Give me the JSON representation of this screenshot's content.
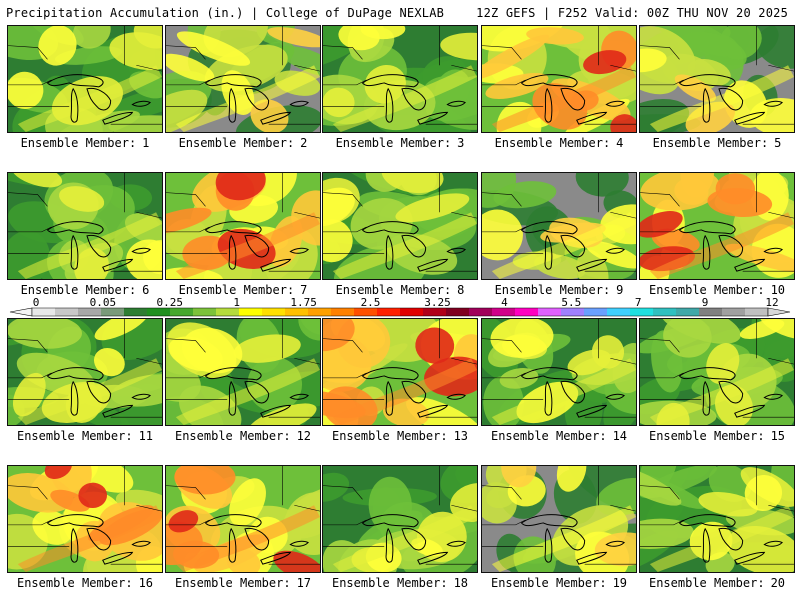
{
  "header": {
    "title": "Precipitation Accumulation (in.) | College of DuPage NEXLAB",
    "run_info": "12Z GEFS | F252 Valid: 00Z THU NOV 20 2025"
  },
  "panel_label_prefix": "Ensemble Member:",
  "members": [
    {
      "label": "1",
      "tone": "green"
    },
    {
      "label": "2",
      "tone": "mixed"
    },
    {
      "label": "3",
      "tone": "green"
    },
    {
      "label": "4",
      "tone": "warm"
    },
    {
      "label": "5",
      "tone": "mixed"
    },
    {
      "label": "6",
      "tone": "green"
    },
    {
      "label": "7",
      "tone": "warm"
    },
    {
      "label": "8",
      "tone": "green"
    },
    {
      "label": "9",
      "tone": "mixed"
    },
    {
      "label": "10",
      "tone": "warm"
    },
    {
      "label": "11",
      "tone": "green"
    },
    {
      "label": "12",
      "tone": "green"
    },
    {
      "label": "13",
      "tone": "warm"
    },
    {
      "label": "14",
      "tone": "green"
    },
    {
      "label": "15",
      "tone": "green"
    },
    {
      "label": "16",
      "tone": "warm"
    },
    {
      "label": "17",
      "tone": "warm"
    },
    {
      "label": "18",
      "tone": "green"
    },
    {
      "label": "19",
      "tone": "mixed"
    },
    {
      "label": "20",
      "tone": "green"
    }
  ],
  "colorbar": {
    "tick_labels": [
      "0",
      "0.05",
      "0.25",
      "1",
      "1.75",
      "2.5",
      "3.25",
      "4",
      "5.5",
      "7",
      "9",
      "12"
    ],
    "colors": [
      "#e8e8e8",
      "#c8c8c8",
      "#a8a8a8",
      "#7a9a7a",
      "#2e7d32",
      "#1f8f1f",
      "#46a82e",
      "#7cc23a",
      "#b5dc3c",
      "#ffff00",
      "#ffe000",
      "#ffc000",
      "#ffa000",
      "#ff8000",
      "#ff5000",
      "#ff2000",
      "#e00000",
      "#b00018",
      "#800020",
      "#a0005a",
      "#d0008a",
      "#ff00c0",
      "#e060ff",
      "#a080ff",
      "#6aa0ff",
      "#40d0ff",
      "#20e0e0",
      "#30c0c0",
      "#40a8a8",
      "#808080",
      "#a0a0a0",
      "#c0c0c0"
    ]
  },
  "palette": {
    "green": [
      "#2e7d32",
      "#3d9b2d",
      "#6ec03a",
      "#a8d840",
      "#e6f03a",
      "#ffff3a"
    ],
    "mixed": [
      "#8a8a8a",
      "#2e7d32",
      "#6ec03a",
      "#c8e040",
      "#ffff3a",
      "#ffd040"
    ],
    "warm": [
      "#6ec03a",
      "#c8e040",
      "#ffff3a",
      "#ffc83a",
      "#ff8c28",
      "#e02818"
    ],
    "water_line": "#000000"
  }
}
